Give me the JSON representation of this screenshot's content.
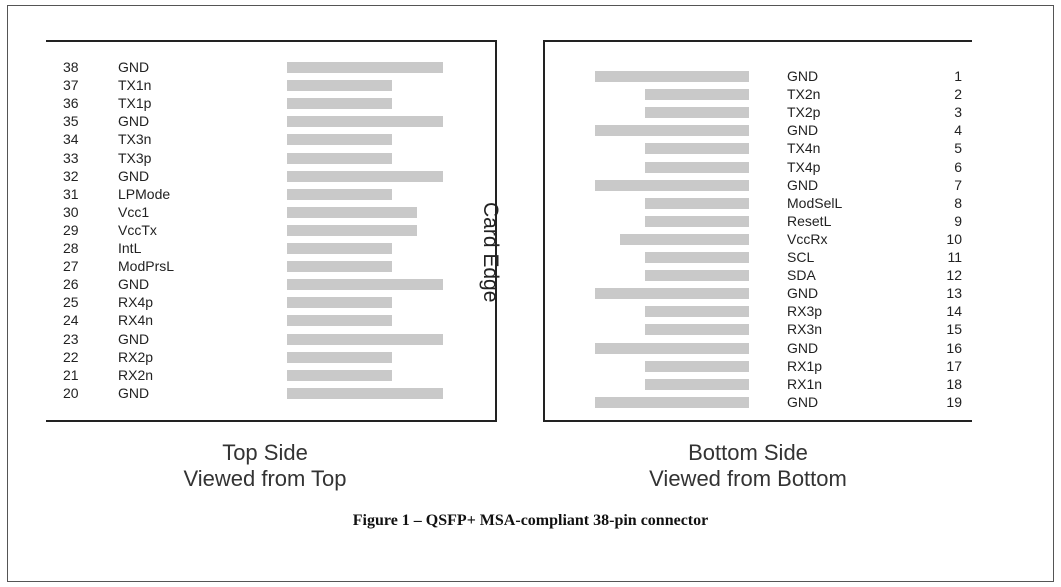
{
  "diagram": {
    "center_label": "Card Edge",
    "top_side": {
      "title": "Top Side",
      "subtitle": "Viewed from Top",
      "pins": [
        {
          "num": "38",
          "name": "GND",
          "bar": "long"
        },
        {
          "num": "37",
          "name": "TX1n",
          "bar": "short"
        },
        {
          "num": "36",
          "name": "TX1p",
          "bar": "short"
        },
        {
          "num": "35",
          "name": "GND",
          "bar": "long"
        },
        {
          "num": "34",
          "name": "TX3n",
          "bar": "short"
        },
        {
          "num": "33",
          "name": "TX3p",
          "bar": "short"
        },
        {
          "num": "32",
          "name": "GND",
          "bar": "long"
        },
        {
          "num": "31",
          "name": "LPMode",
          "bar": "short"
        },
        {
          "num": "30",
          "name": "Vcc1",
          "bar": "medium"
        },
        {
          "num": "29",
          "name": "VccTx",
          "bar": "medium"
        },
        {
          "num": "28",
          "name": "IntL",
          "bar": "short"
        },
        {
          "num": "27",
          "name": "ModPrsL",
          "bar": "short"
        },
        {
          "num": "26",
          "name": "GND",
          "bar": "long"
        },
        {
          "num": "25",
          "name": "RX4p",
          "bar": "short"
        },
        {
          "num": "24",
          "name": "RX4n",
          "bar": "short"
        },
        {
          "num": "23",
          "name": "GND",
          "bar": "long"
        },
        {
          "num": "22",
          "name": "RX2p",
          "bar": "short"
        },
        {
          "num": "21",
          "name": "RX2n",
          "bar": "short"
        },
        {
          "num": "20",
          "name": "GND",
          "bar": "long"
        }
      ]
    },
    "bottom_side": {
      "title": "Bottom Side",
      "subtitle": "Viewed from Bottom",
      "pins": [
        {
          "num": "1",
          "name": "GND",
          "bar": "long"
        },
        {
          "num": "2",
          "name": "TX2n",
          "bar": "short"
        },
        {
          "num": "3",
          "name": "TX2p",
          "bar": "short"
        },
        {
          "num": "4",
          "name": "GND",
          "bar": "long"
        },
        {
          "num": "5",
          "name": "TX4n",
          "bar": "short"
        },
        {
          "num": "6",
          "name": "TX4p",
          "bar": "short"
        },
        {
          "num": "7",
          "name": "GND",
          "bar": "long"
        },
        {
          "num": "8",
          "name": "ModSelL",
          "bar": "short"
        },
        {
          "num": "9",
          "name": "ResetL",
          "bar": "short"
        },
        {
          "num": "10",
          "name": "VccRx",
          "bar": "medium"
        },
        {
          "num": "11",
          "name": "SCL",
          "bar": "short"
        },
        {
          "num": "12",
          "name": "SDA",
          "bar": "short"
        },
        {
          "num": "13",
          "name": "GND",
          "bar": "long"
        },
        {
          "num": "14",
          "name": "RX3p",
          "bar": "short"
        },
        {
          "num": "15",
          "name": "RX3n",
          "bar": "short"
        },
        {
          "num": "16",
          "name": "GND",
          "bar": "long"
        },
        {
          "num": "17",
          "name": "RX1p",
          "bar": "short"
        },
        {
          "num": "18",
          "name": "RX1n",
          "bar": "short"
        },
        {
          "num": "19",
          "name": "GND",
          "bar": "long"
        }
      ]
    },
    "caption": "Figure 1 – QSFP+ MSA-compliant 38-pin connector",
    "colors": {
      "pad": "#c9c9c9",
      "line": "#222222",
      "text": "#222222"
    }
  }
}
